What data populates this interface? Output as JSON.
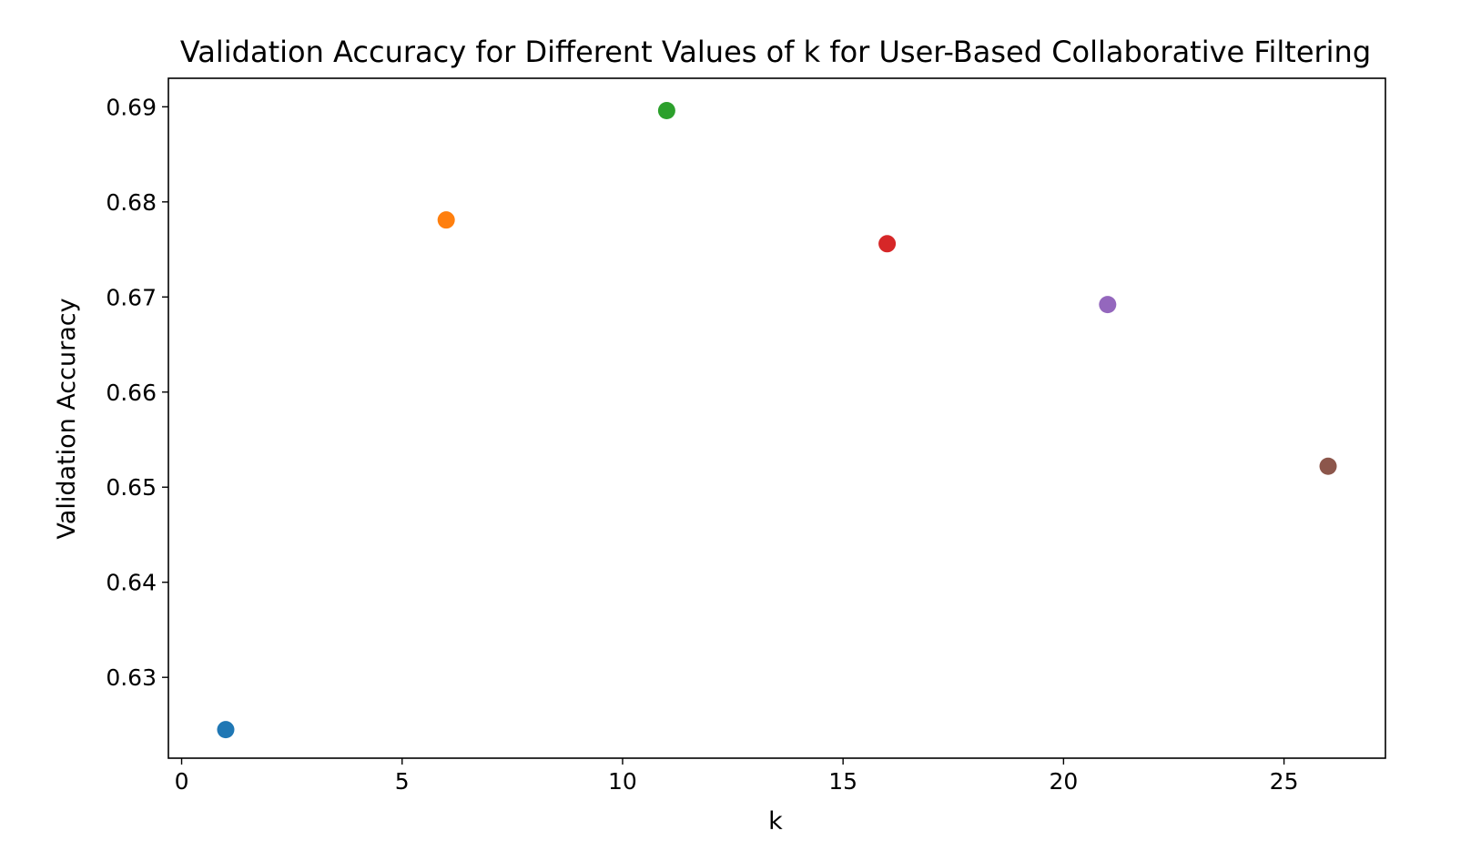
{
  "chart_data": {
    "type": "scatter",
    "title": "Validation Accuracy for Different Values of k for User-Based Collaborative Filtering",
    "xlabel": "k",
    "ylabel": "Validation Accuracy",
    "xlim": [
      -0.3,
      27.3
    ],
    "ylim": [
      0.6215,
      0.693
    ],
    "xticks": [
      0,
      5,
      10,
      15,
      20,
      25
    ],
    "xtick_labels": [
      "0",
      "5",
      "10",
      "15",
      "20",
      "25"
    ],
    "yticks": [
      0.63,
      0.64,
      0.65,
      0.66,
      0.67,
      0.68,
      0.69
    ],
    "ytick_labels": [
      "0.63",
      "0.64",
      "0.65",
      "0.66",
      "0.67",
      "0.68",
      "0.69"
    ],
    "grid": false,
    "points": [
      {
        "x": 1,
        "y": 0.6245,
        "color": "#1f77b4"
      },
      {
        "x": 6,
        "y": 0.6781,
        "color": "#ff7f0e"
      },
      {
        "x": 11,
        "y": 0.6896,
        "color": "#2ca02c"
      },
      {
        "x": 16,
        "y": 0.6756,
        "color": "#d62728"
      },
      {
        "x": 21,
        "y": 0.6692,
        "color": "#9467bd"
      },
      {
        "x": 26,
        "y": 0.6522,
        "color": "#8c564b"
      }
    ]
  }
}
